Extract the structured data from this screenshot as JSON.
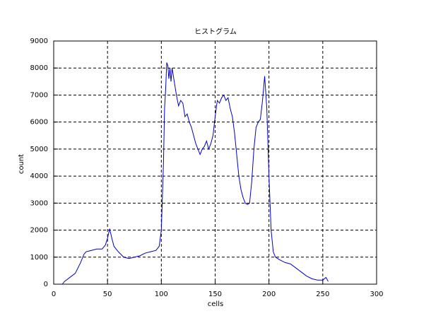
{
  "chart_data": {
    "type": "line",
    "title": "ヒストグラム",
    "x_label": "cells",
    "y_label": "count",
    "x": [
      8,
      10,
      15,
      20,
      25,
      28,
      30,
      35,
      40,
      45,
      48,
      50,
      52,
      54,
      56,
      58,
      60,
      65,
      70,
      75,
      80,
      85,
      90,
      95,
      98,
      100,
      102,
      103,
      104,
      105,
      106,
      107,
      108,
      109,
      110,
      112,
      114,
      116,
      118,
      120,
      122,
      124,
      126,
      128,
      130,
      132,
      134,
      136,
      138,
      140,
      142,
      144,
      146,
      148,
      150,
      152,
      154,
      156,
      158,
      160,
      162,
      164,
      166,
      168,
      170,
      172,
      174,
      176,
      178,
      180,
      182,
      184,
      186,
      188,
      190,
      192,
      194,
      196,
      198,
      200,
      202,
      204,
      206,
      210,
      215,
      220,
      225,
      230,
      235,
      240,
      245,
      250,
      253,
      255
    ],
    "series": [
      {
        "color": "#0000cc",
        "values": [
          0,
          100,
          250,
          400,
          800,
          1100,
          1200,
          1250,
          1300,
          1300,
          1450,
          1700,
          2050,
          1700,
          1400,
          1300,
          1200,
          1000,
          950,
          1000,
          1050,
          1150,
          1200,
          1250,
          1400,
          2000,
          4500,
          6500,
          7200,
          8200,
          8100,
          7600,
          8000,
          7500,
          8000,
          7500,
          7000,
          6600,
          6800,
          6700,
          6200,
          6300,
          6000,
          5800,
          5500,
          5200,
          5000,
          4800,
          5000,
          5100,
          5300,
          5000,
          5200,
          5500,
          6200,
          6800,
          6700,
          6900,
          7000,
          6800,
          6900,
          6500,
          6200,
          5600,
          4800,
          4000,
          3500,
          3200,
          3000,
          2950,
          3000,
          3800,
          5000,
          5800,
          6000,
          6100,
          6800,
          7700,
          6500,
          4000,
          2000,
          1200,
          1000,
          900,
          800,
          750,
          600,
          450,
          300,
          200,
          150,
          150,
          250,
          100
        ]
      }
    ],
    "xlim": [
      0,
      300
    ],
    "xticks": [
      0,
      50,
      100,
      150,
      200,
      250,
      300
    ],
    "ylim": [
      0,
      9000
    ],
    "yticks": [
      0,
      1000,
      2000,
      3000,
      4000,
      5000,
      6000,
      7000,
      8000,
      9000
    ],
    "grid": true
  }
}
